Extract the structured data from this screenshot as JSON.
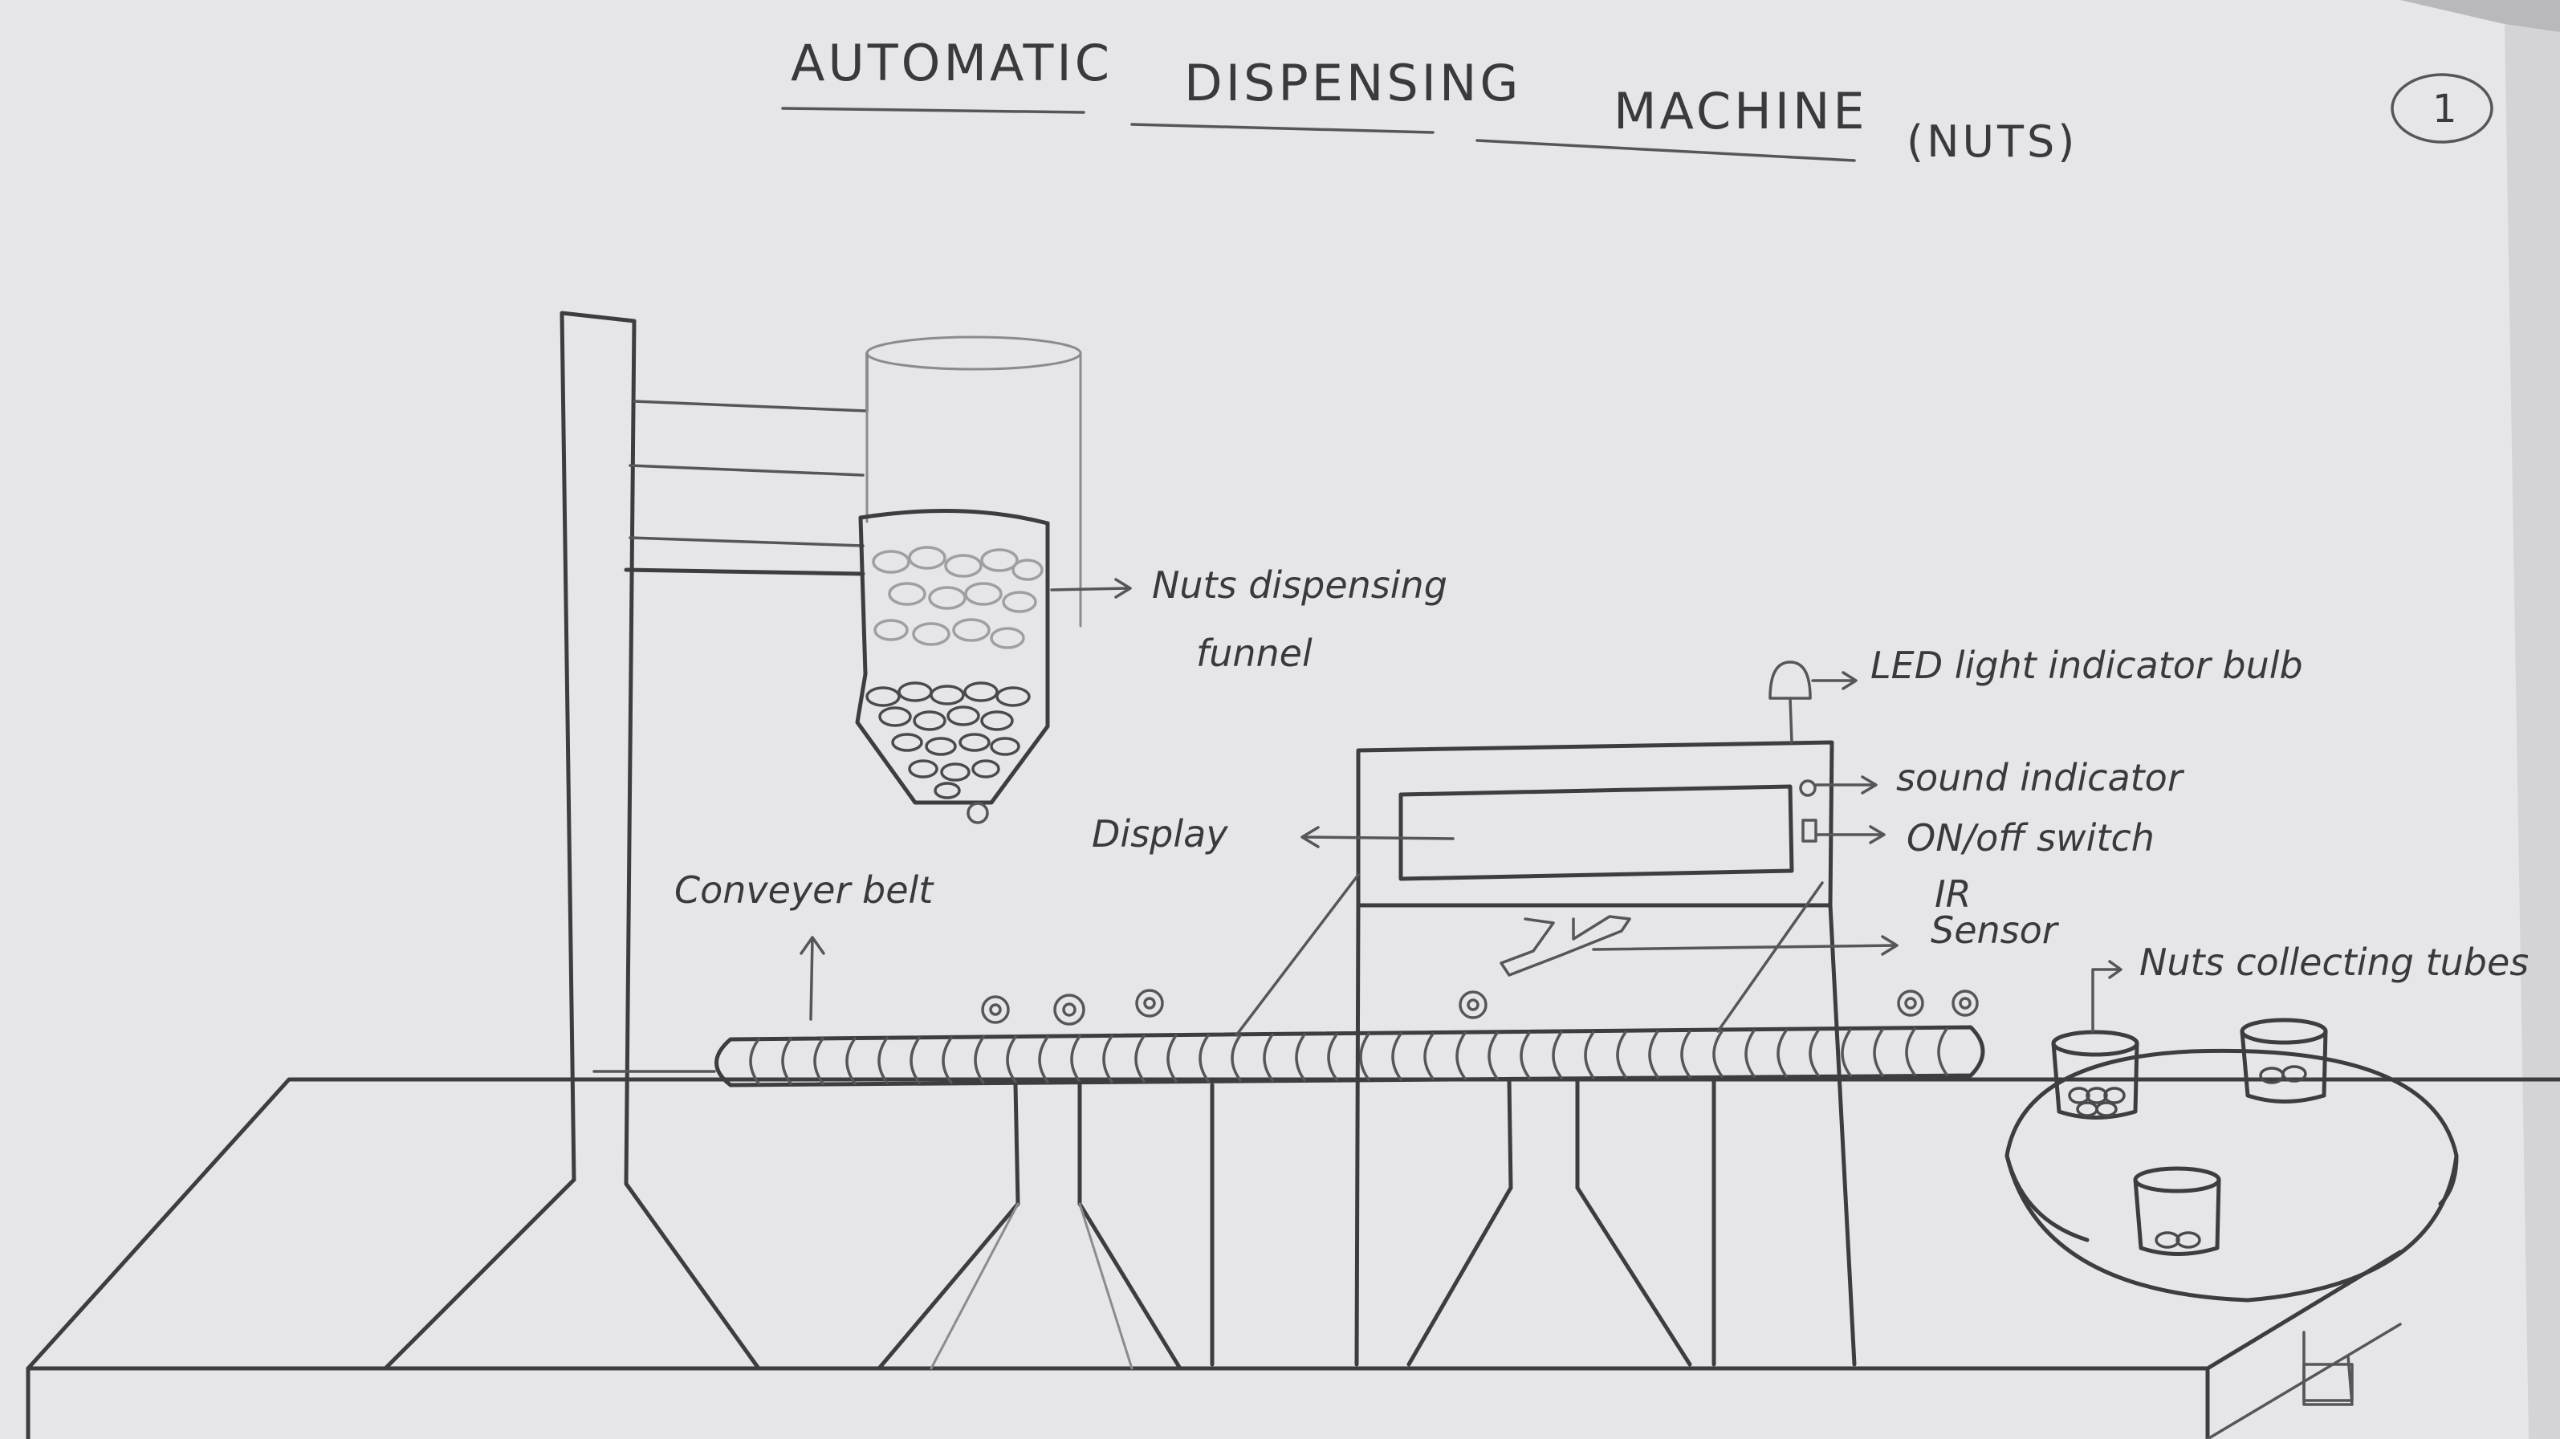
{
  "title": {
    "word1": "AUTOMATIC",
    "word2": "DISPENSING",
    "word3": "MACHINE",
    "suffix": "(NUTS)",
    "page_number": "1"
  },
  "labels": {
    "funnel_line1": "Nuts dispensing",
    "funnel_line2": "funnel",
    "led": "LED light indicator bulb",
    "sound": "sound indicator",
    "switch": "ON/off switch",
    "ir_line1": "IR",
    "ir_line2": "Sensor",
    "display": "Display",
    "conveyor": "Conveyer belt",
    "tubes": "Nuts collecting tubes"
  },
  "colors": {
    "paper": "#e6e6e8",
    "pencil": "#3d3d40",
    "background": "#b9b9bb"
  }
}
